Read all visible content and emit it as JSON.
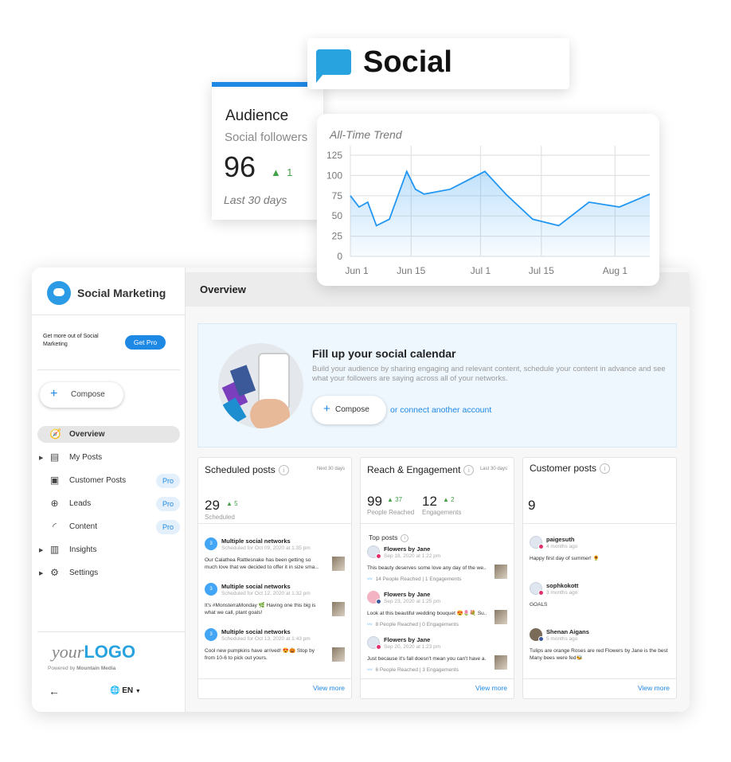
{
  "social_badge": {
    "title": "Social",
    "icon": "speech-bubble-icon"
  },
  "audience": {
    "title": "Audience",
    "subtitle": "Social followers",
    "value": "96",
    "delta": "1",
    "period": "Last 30 days"
  },
  "chart_data": {
    "type": "area",
    "title": "All-Time Trend",
    "xlabel": "",
    "ylabel": "",
    "ylim": [
      0,
      125
    ],
    "yticks": [
      "0",
      "25",
      "50",
      "75",
      "100",
      "125"
    ],
    "xticks": [
      {
        "label": "Jun 1",
        "date": "2020-06-01"
      },
      {
        "label": "Jun 15",
        "date": "2020-06-15"
      },
      {
        "label": "Jul 1",
        "date": "2020-07-01"
      },
      {
        "label": "Jul 15",
        "date": "2020-07-15"
      },
      {
        "label": "Aug 1",
        "date": "2020-08-01"
      }
    ],
    "xlim": [
      "2020-06-01",
      "2020-08-09"
    ],
    "grid": true,
    "color": "#2196f3",
    "x": [
      "2020-06-01",
      "2020-06-03",
      "2020-06-05",
      "2020-06-07",
      "2020-06-10",
      "2020-06-14",
      "2020-06-16",
      "2020-06-18",
      "2020-06-24",
      "2020-07-02",
      "2020-07-07",
      "2020-07-13",
      "2020-07-19",
      "2020-07-26",
      "2020-08-02",
      "2020-08-09"
    ],
    "values": [
      75,
      61,
      67,
      38,
      46,
      105,
      83,
      77,
      83,
      105,
      76,
      46,
      38,
      67,
      61,
      77
    ]
  },
  "sidebar": {
    "app_name": "Social Marketing",
    "promo_text": "Get more out of Social Marketing",
    "get_pro": "Get Pro",
    "compose": "Compose",
    "items": [
      {
        "label": "Overview",
        "icon": "compass-icon"
      },
      {
        "label": "My Posts",
        "icon": "message-icon"
      },
      {
        "label": "Customer Posts",
        "icon": "forum-icon",
        "badge": "Pro"
      },
      {
        "label": "Leads",
        "icon": "target-icon",
        "badge": "Pro"
      },
      {
        "label": "Content",
        "icon": "rss-icon",
        "badge": "Pro"
      },
      {
        "label": "Insights",
        "icon": "bar-chart-icon"
      },
      {
        "label": "Settings",
        "icon": "gear-icon"
      }
    ],
    "logo_light": "your",
    "logo_bold": "LOGO",
    "powered_by": "Powered by",
    "powered_company": "Mountain Media",
    "language": "EN"
  },
  "main": {
    "title": "Overview",
    "hero": {
      "title": "Fill up your social calendar",
      "body": "Build your audience by sharing engaging and relevant content, schedule your content in advance and see what your followers are saying across all of your networks.",
      "compose": "Compose",
      "connect": "or connect another account"
    },
    "scheduled": {
      "title": "Scheduled posts",
      "range": "Next 30 days",
      "value": "29",
      "delta": "5",
      "label": "Scheduled",
      "view_more": "View more",
      "items": [
        {
          "avatar": "3",
          "name": "Multiple social networks",
          "time": "Scheduled for Oct 09, 2020 at 1:35 pm",
          "text": "Our Calathea Rattlesnake has been getting so much love that we decided to offer it in size sma..."
        },
        {
          "avatar": "3",
          "name": "Multiple social networks",
          "time": "Scheduled for Oct 12, 2020 at 1:32 pm",
          "text": "It's #MonsterraMonday 🌿 Having one this big is what we call, plant goals!"
        },
        {
          "avatar": "3",
          "name": "Multiple social networks",
          "time": "Scheduled for Oct 13, 2020 at 1:43 pm",
          "text": "Cool new pumpkins have arrived! 😍🎃 Stop by from 10-6 to pick out yours."
        }
      ]
    },
    "reach": {
      "title": "Reach & Engagement",
      "range": "Last 30 days",
      "reached": "99",
      "reached_delta": "37",
      "reached_label": "People Reached",
      "engagements": "12",
      "engagements_delta": "2",
      "engagements_label": "Engagements",
      "top_posts": "Top posts",
      "view_more": "View more",
      "items": [
        {
          "name": "Flowers by Jane",
          "time": "Sep 18, 2020 at 1:22 pm",
          "text": "This beauty deserves some love any day of the we...",
          "stats": "14 People Reached | 1 Engagements",
          "network": "instagram"
        },
        {
          "name": "Flowers by Jane",
          "time": "Sep 23, 2020 at 1:25 pm",
          "text": "Look at this beautiful wedding bouquet 😍🌷💐 Su...",
          "stats": "8 People Reached | 0 Engagements",
          "network": "facebook"
        },
        {
          "name": "Flowers by Jane",
          "time": "Sep 20, 2020 at 1:23 pm",
          "text": "Just because it's fall doesn't mean you can't have a...",
          "stats": "6 People Reached | 3 Engagements",
          "network": "instagram"
        }
      ]
    },
    "customer": {
      "title": "Customer posts",
      "value": "9",
      "view_more": "View more",
      "items": [
        {
          "name": "paigesuth",
          "time": "4 months ago",
          "text": "Happy first day of summer! 🌻",
          "network": "instagram"
        },
        {
          "name": "sophkokott",
          "time": "3 months ago",
          "text": "GOALS",
          "network": "instagram"
        },
        {
          "name": "Shenan Aigans",
          "time": "5 months ago",
          "text": "Tulips are orange Roses are red Flowers by Jane is the best Many bees were fed🐝",
          "network": "facebook"
        }
      ]
    }
  }
}
